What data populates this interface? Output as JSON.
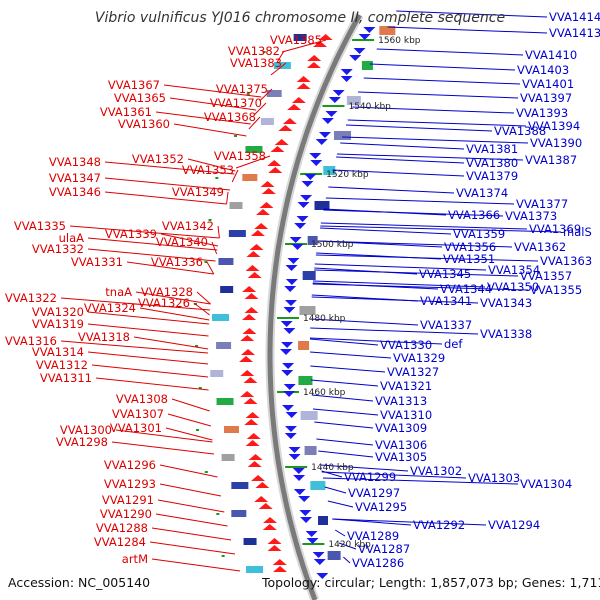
{
  "title": "Vibrio vulnificus YJ016 chromosome II, complete sequence",
  "footer": {
    "accession": "Accession: NC_005140",
    "topology": "Topology: circular; Length: 1,857,073 bp; Genes: 1,711"
  },
  "colors": {
    "left_labels": "#dd0000",
    "right_labels": "#0000cc",
    "backbone": "#7a7a7a",
    "green_marker": "#1a9a1a"
  },
  "ticks": [
    "1560 kbp",
    "1540 kbp",
    "1520 kbp",
    "1500 kbp",
    "1480 kbp",
    "1460 kbp",
    "1440 kbp",
    "1420 kbp"
  ],
  "left_genes": [
    "VVA1385",
    "VVA1382",
    "VVA1383",
    "VVA1375",
    "VVA1367",
    "VVA1365",
    "VVA1370",
    "VVA1361",
    "VVA1368",
    "VVA1360",
    "VVA1352",
    "VVA1358",
    "VVA1348",
    "VVA1353",
    "VVA1347",
    "VVA1346",
    "VVA1349",
    "VVA1335",
    "VVA1342",
    "ulaA",
    "VVA1339",
    "VVA1340",
    "VVA1332",
    "VVA1331",
    "VVA1336",
    "tnaA",
    "VVA1328",
    "VVA1322",
    "VVA1324",
    "VVA1326",
    "VVA1320",
    "VVA1319",
    "VVA1318",
    "VVA1316",
    "VVA1314",
    "VVA1312",
    "VVA1311",
    "VVA1308",
    "VVA1307",
    "VVA1301",
    "VVA1300",
    "VVA1298",
    "VVA1296",
    "VVA1293",
    "VVA1291",
    "VVA1290",
    "VVA1288",
    "VVA1284",
    "artM"
  ],
  "right_genes": [
    "VVA1414",
    "VVA1413",
    "VVA1410",
    "VVA1403",
    "VVA1401",
    "VVA1397",
    "VVA1393",
    "VVA1394",
    "VVA1388",
    "VVA1390",
    "VVA1381",
    "VVA1387",
    "VVA1380",
    "VVA1379",
    "VVA1374",
    "VVA1377",
    "VVA1373",
    "VVA1366",
    "VVA1369",
    "malS",
    "VVA1359",
    "VVA1362",
    "VVA1356",
    "VVA1363",
    "VVA1351",
    "VVA1354",
    "VVA1357",
    "VVA1345",
    "VVA1350",
    "VVA1355",
    "VVA1344",
    "VVA1343",
    "VVA1341",
    "VVA1337",
    "VVA1338",
    "VVA1330",
    "def",
    "VVA1329",
    "VVA1327",
    "VVA1321",
    "VVA1313",
    "VVA1310",
    "VVA1309",
    "VVA1306",
    "VVA1305",
    "VVA1302",
    "VVA1303",
    "VVA1304",
    "VVA1299",
    "VVA1297",
    "VVA1295",
    "VVA1292",
    "VVA1294",
    "VVA1289",
    "VVA1287",
    "VVA1286"
  ]
}
